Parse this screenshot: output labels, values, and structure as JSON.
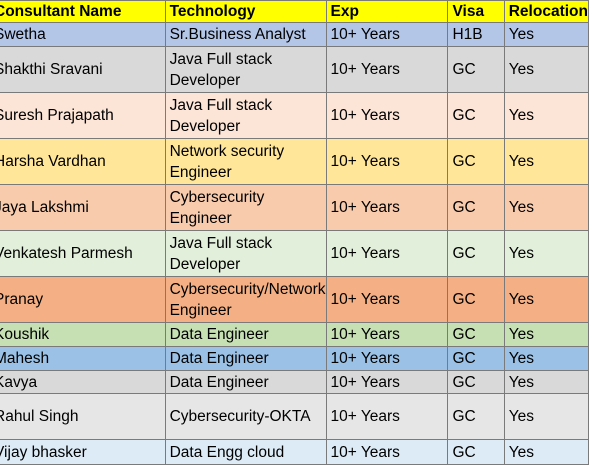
{
  "headers": [
    "Consultant Name",
    "Technology",
    "Exp",
    "Visa",
    "Relocation"
  ],
  "rows": [
    {
      "name": "Swetha",
      "tech": "Sr.Business Analyst",
      "exp": "10+ Years",
      "visa": "H1B",
      "reloc": "Yes",
      "color": "#b4c6e7",
      "h": 23
    },
    {
      "name": "Shakthi Sravani",
      "tech": "Java Full stack Developer",
      "exp": "10+ Years",
      "visa": "GC",
      "reloc": "Yes",
      "color": "#d9d9d9",
      "h": 45
    },
    {
      "name": "Suresh  Prajapath",
      "tech": "Java Full stack Developer",
      "exp": "10+ Years",
      "visa": "GC",
      "reloc": "Yes",
      "color": "#fce4d6",
      "h": 45
    },
    {
      "name": "Harsha Vardhan",
      "tech": "Network security Engineer",
      "exp": "10+ Years",
      "visa": "GC",
      "reloc": "Yes",
      "color": "#ffe699",
      "h": 45
    },
    {
      "name": "Jaya Lakshmi",
      "tech": "Cybersecurity Engineer",
      "exp": "10+ Years",
      "visa": "GC",
      "reloc": "Yes",
      "color": "#f8cbad",
      "h": 45
    },
    {
      "name": "Venkatesh Parmesh",
      "tech": "Java Full stack Developer",
      "exp": "10+ Years",
      "visa": "GC",
      "reloc": "Yes",
      "color": "#e2efda",
      "h": 45
    },
    {
      "name": "Pranay",
      "tech": "Cybersecurity/Network Engineer",
      "exp": "10+ Years",
      "visa": "GC",
      "reloc": "Yes",
      "color": "#f4b084",
      "h": 45
    },
    {
      "name": "Koushik",
      "tech": "Data Engineer",
      "exp": "10+ Years",
      "visa": "GC",
      "reloc": "Yes",
      "color": "#c6e0b4",
      "h": 23
    },
    {
      "name": "Mahesh",
      "tech": "Data Engineer",
      "exp": "10+ Years",
      "visa": "GC",
      "reloc": "Yes",
      "color": "#9bc2e6",
      "h": 23
    },
    {
      "name": "Kavya",
      "tech": "Data Engineer",
      "exp": "10+ Years",
      "visa": "GC",
      "reloc": "Yes",
      "color": "#d9d9d9",
      "h": 22
    },
    {
      "name": "Rahul Singh",
      "tech": "Cybersecurity-OKTA",
      "exp": "10+ Years",
      "visa": "GC",
      "reloc": "Yes",
      "color": "#e7e6e6",
      "h": 45
    },
    {
      "name": "Vijay bhasker",
      "tech": "Data Engg cloud",
      "exp": "10+ Years",
      "visa": "GC",
      "reloc": "Yes",
      "color": "#ddebf7",
      "h": 24
    }
  ]
}
